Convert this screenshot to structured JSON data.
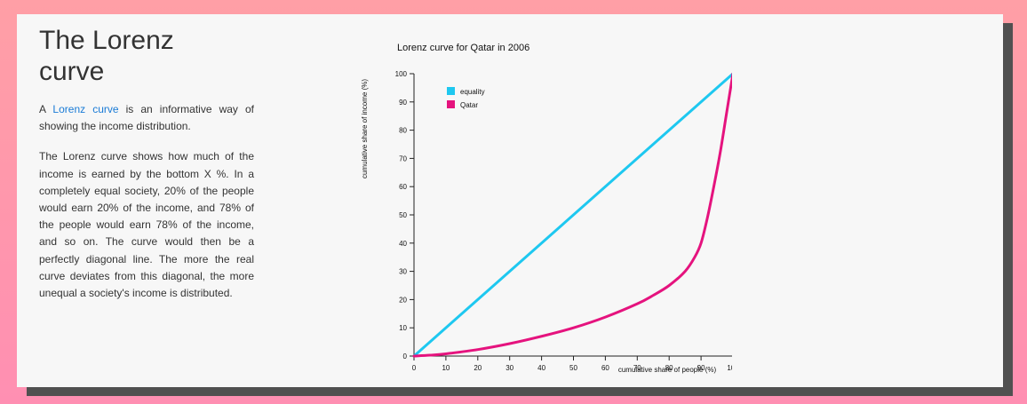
{
  "article": {
    "title": "The Lorenz curve",
    "intro_before_link": "A ",
    "intro_link": "Lorenz curve",
    "intro_after_link": " is an informative way of showing the income distribution.",
    "body": "The Lorenz curve shows how much of the income is earned by the bottom X %. In a completely equal society, 20% of the people would earn 20% of the income, and 78% of the people would earn 78% of the income, and so on. The curve would then be a perfectly diagonal line. The more the real curve deviates from this diagonal, the more unequal a society's income is distributed."
  },
  "chart_data": {
    "type": "line",
    "title": "Lorenz curve for Qatar in 2006",
    "xlabel": "cumulative share of people (%)",
    "ylabel": "cumulative share of income (%)",
    "xlim": [
      0,
      100
    ],
    "ylim": [
      0,
      100
    ],
    "xticks": [
      "0",
      "10",
      "20",
      "30",
      "40",
      "50",
      "60",
      "70",
      "80",
      "90",
      "100"
    ],
    "yticks": [
      "0",
      "10",
      "20",
      "30",
      "40",
      "50",
      "60",
      "70",
      "80",
      "90",
      "100"
    ],
    "grid": false,
    "legend_position": "top-left",
    "series": [
      {
        "name": "equality",
        "color": "#1ec8f0",
        "x": [
          0,
          100
        ],
        "y": [
          0,
          100
        ]
      },
      {
        "name": "Qatar",
        "color": "#e5137e",
        "x": [
          0,
          5,
          10,
          20,
          30,
          40,
          50,
          60,
          70,
          75,
          80,
          85,
          88,
          90,
          92,
          94,
          96,
          98,
          100
        ],
        "y": [
          0,
          0.3,
          0.8,
          2.3,
          4.4,
          7.0,
          10.0,
          13.8,
          18.5,
          21.5,
          25.0,
          30.0,
          35.0,
          40.0,
          49.0,
          60.0,
          72.0,
          86.0,
          100
        ]
      }
    ]
  }
}
